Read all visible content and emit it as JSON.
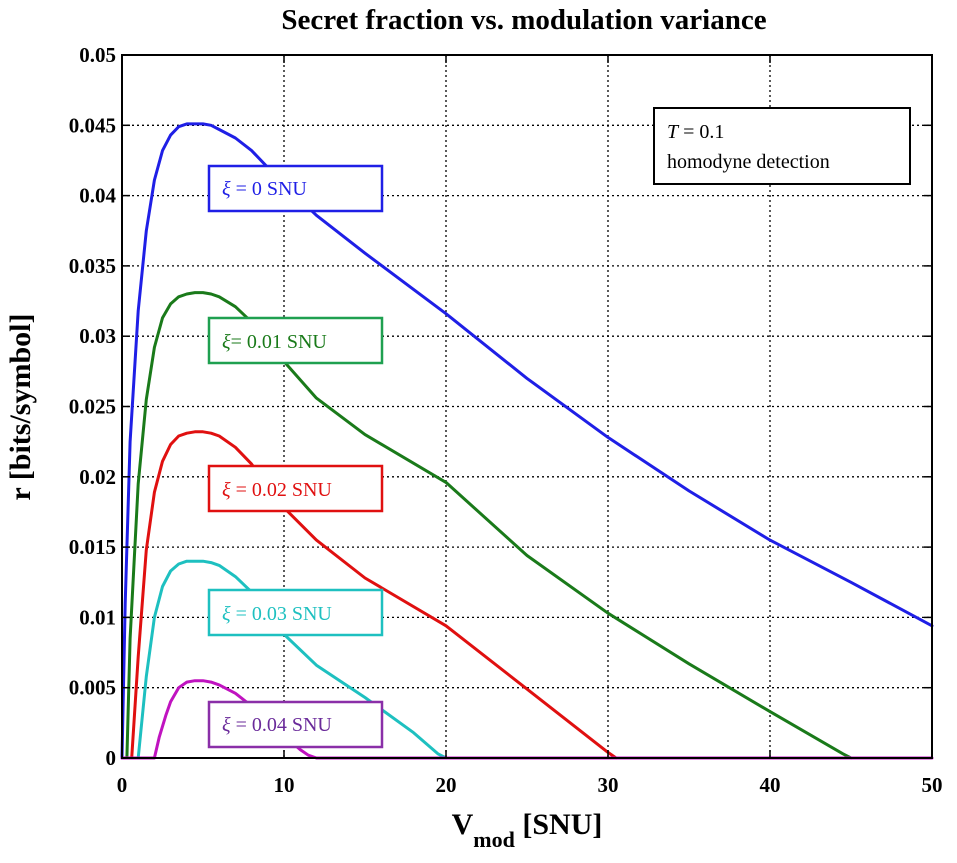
{
  "chart_data": {
    "type": "line",
    "title": "Secret fraction vs. modulation variance",
    "xlabel": {
      "main": "V",
      "sub": "mod",
      "rest": " [SNU]"
    },
    "ylabel": "r [bits/symbol]",
    "xlim": [
      0,
      50
    ],
    "ylim": [
      0,
      0.05
    ],
    "x_ticks": [
      {
        "value": 0,
        "label": "0"
      },
      {
        "value": 10,
        "label": "10"
      },
      {
        "value": 20,
        "label": "20"
      },
      {
        "value": 30,
        "label": "30"
      },
      {
        "value": 40,
        "label": "40"
      },
      {
        "value": 50,
        "label": "50"
      }
    ],
    "y_ticks": [
      {
        "value": 0,
        "label": "0"
      },
      {
        "value": 0.005,
        "label": "0.005"
      },
      {
        "value": 0.01,
        "label": "0.01"
      },
      {
        "value": 0.015,
        "label": "0.015"
      },
      {
        "value": 0.02,
        "label": "0.02"
      },
      {
        "value": 0.025,
        "label": "0.025"
      },
      {
        "value": 0.03,
        "label": "0.03"
      },
      {
        "value": 0.035,
        "label": "0.035"
      },
      {
        "value": 0.04,
        "label": "0.04"
      },
      {
        "value": 0.045,
        "label": "0.045"
      },
      {
        "value": 0.05,
        "label": "0.05"
      }
    ],
    "grid": true,
    "series": [
      {
        "name": "ξ = 0 SNU",
        "label": {
          "sym": "ξ",
          "rest": " = 0 SNU"
        },
        "color": "#1f1fe6",
        "x": [
          0,
          0.2,
          0.5,
          1,
          1.5,
          2,
          2.5,
          3,
          3.5,
          4,
          4.5,
          5,
          5.5,
          6,
          7,
          8,
          9,
          10,
          12,
          15,
          20,
          25,
          30,
          35,
          40,
          45,
          50
        ],
        "y": [
          0,
          0.011,
          0.0225,
          0.0318,
          0.0375,
          0.0411,
          0.0432,
          0.0443,
          0.0449,
          0.0451,
          0.0451,
          0.0451,
          0.045,
          0.0447,
          0.0441,
          0.0432,
          0.042,
          0.0408,
          0.0386,
          0.0359,
          0.0316,
          0.027,
          0.0228,
          0.019,
          0.0155,
          0.0125,
          0.0094
        ]
      },
      {
        "name": "ξ= 0.01 SNU",
        "label": {
          "sym": "ξ",
          "rest": "= 0.01 SNU"
        },
        "color": "#1a7a1a",
        "x": [
          0.3,
          0.5,
          1,
          1.5,
          2,
          2.5,
          3,
          3.5,
          4,
          4.5,
          5,
          5.5,
          6,
          7,
          8,
          9,
          10,
          12,
          15,
          20,
          25,
          30,
          35,
          40,
          44.5,
          45
        ],
        "y": [
          0,
          0.0085,
          0.0195,
          0.0255,
          0.0292,
          0.0313,
          0.0323,
          0.0328,
          0.033,
          0.0331,
          0.0331,
          0.033,
          0.0328,
          0.0321,
          0.031,
          0.0297,
          0.0282,
          0.0256,
          0.023,
          0.0196,
          0.0144,
          0.0103,
          0.0067,
          0.0033,
          0.0003,
          0
        ]
      },
      {
        "name": "ξ = 0.02 SNU",
        "label": {
          "sym": "ξ",
          "rest": " = 0.02 SNU"
        },
        "color": "#e01010",
        "x": [
          0.6,
          1,
          1.5,
          2,
          2.5,
          3,
          3.5,
          4,
          4.5,
          5,
          5.5,
          6,
          7,
          8,
          9,
          10,
          12,
          15,
          20,
          25,
          30,
          30.5
        ],
        "y": [
          0,
          0.0072,
          0.0148,
          0.0189,
          0.0211,
          0.0223,
          0.0229,
          0.0231,
          0.0232,
          0.0232,
          0.0231,
          0.0229,
          0.0221,
          0.0209,
          0.0193,
          0.0178,
          0.0155,
          0.0128,
          0.0094,
          0.0049,
          0.0004,
          0
        ]
      },
      {
        "name": "ξ = 0.03 SNU",
        "label": {
          "sym": "ξ",
          "rest": " = 0.03 SNU"
        },
        "color": "#1ec0c0",
        "x": [
          1,
          1.5,
          2,
          2.5,
          3,
          3.5,
          4,
          4.5,
          5,
          5.5,
          6,
          7,
          8,
          9,
          10,
          12,
          15,
          18,
          19.5,
          20
        ],
        "y": [
          0,
          0.0058,
          0.01,
          0.0122,
          0.0133,
          0.0138,
          0.014,
          0.014,
          0.014,
          0.0139,
          0.0137,
          0.0129,
          0.0118,
          0.0104,
          0.0088,
          0.0066,
          0.0043,
          0.0018,
          0.0003,
          0
        ]
      },
      {
        "name": "ξ = 0.04 SNU",
        "label": {
          "sym": "ξ",
          "rest": " = 0.04 SNU"
        },
        "color": "#c013c0",
        "x": [
          0,
          2,
          2.3,
          2.7,
          3,
          3.5,
          4,
          4.5,
          5,
          5.5,
          6,
          7,
          8,
          9,
          10,
          11,
          11.5,
          12,
          50
        ],
        "y": [
          0,
          0,
          0.0015,
          0.003,
          0.004,
          0.005,
          0.0054,
          0.0055,
          0.0055,
          0.0054,
          0.0052,
          0.0046,
          0.0037,
          0.0027,
          0.0016,
          0.0006,
          0.0002,
          0,
          0
        ]
      }
    ],
    "annotation": {
      "line1_sym": "T",
      "line1_rest": " = 0.1",
      "line2": "homodyne detection"
    }
  }
}
